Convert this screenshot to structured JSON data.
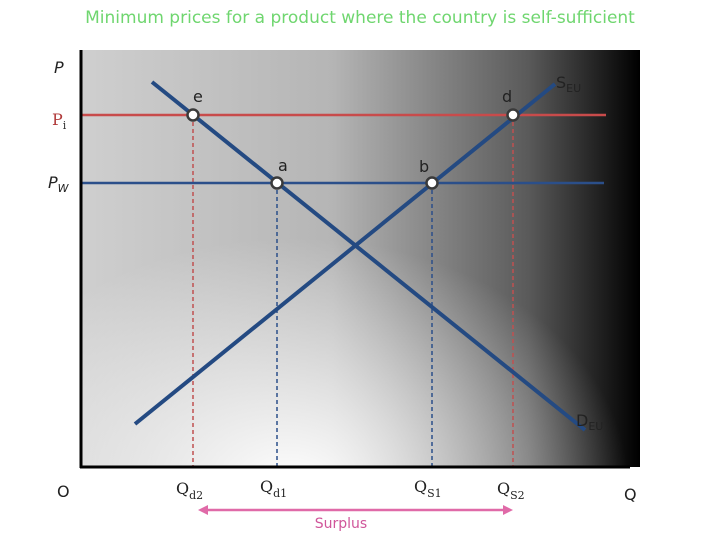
{
  "title": "Minimum prices for a product where the country is self-sufficient",
  "axes": {
    "y": "P",
    "x": "Q",
    "origin": "O"
  },
  "prices": [
    {
      "main": "P",
      "sub": "i"
    },
    {
      "main": "P",
      "sub": "W"
    }
  ],
  "curves": [
    {
      "main": "S",
      "sub": "EU"
    },
    {
      "main": "D",
      "sub": "EU"
    }
  ],
  "points": [
    "e",
    "d",
    "a",
    "b"
  ],
  "quantities": [
    {
      "main": "Q",
      "sub": "d2"
    },
    {
      "main": "Q",
      "sub": "d1"
    },
    {
      "main": "Q",
      "sub": "S1"
    },
    {
      "main": "Q",
      "sub": "S2"
    }
  ],
  "surplus": "Surplus"
}
